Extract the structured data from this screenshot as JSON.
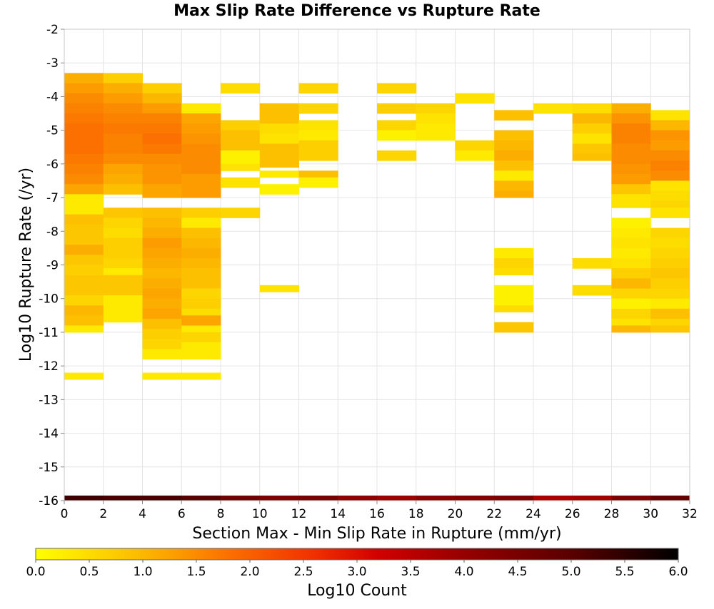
{
  "chart_data": {
    "type": "heatmap",
    "title": "Max Slip Rate Difference vs Rupture Rate",
    "xlabel": "Section Max - Min Slip Rate in Rupture (mm/yr)",
    "ylabel": "Log10 Rupture Rate (/yr)",
    "xlim": [
      0,
      32
    ],
    "ylim": [
      -16,
      -2
    ],
    "x_ticks": [
      0,
      2,
      4,
      6,
      8,
      10,
      12,
      14,
      16,
      18,
      20,
      22,
      24,
      26,
      28,
      30,
      32
    ],
    "y_ticks": [
      -16,
      -15,
      -14,
      -13,
      -12,
      -11,
      -10,
      -9,
      -8,
      -7,
      -6,
      -5,
      -4,
      -3,
      -2
    ],
    "grid": true,
    "x_bin_width": 2,
    "y_bin_height": 0.3,
    "colorbar": {
      "label": "Log10 Count",
      "min": 0.0,
      "max": 6.0,
      "ticks": [
        "0.0",
        "0.5",
        "1.0",
        "1.5",
        "2.0",
        "2.5",
        "3.0",
        "3.5",
        "4.0",
        "4.5",
        "5.0",
        "5.5",
        "6.0"
      ],
      "stops": [
        {
          "v": 0.0,
          "color": "#ffff00"
        },
        {
          "v": 0.9,
          "color": "#fcc000"
        },
        {
          "v": 1.8,
          "color": "#fb7000"
        },
        {
          "v": 2.6,
          "color": "#f03000"
        },
        {
          "v": 3.2,
          "color": "#d00000"
        },
        {
          "v": 4.0,
          "color": "#960000"
        },
        {
          "v": 5.0,
          "color": "#5a0000"
        },
        {
          "v": 6.0,
          "color": "#000000"
        }
      ]
    },
    "bottom_row": {
      "y0": -16,
      "y1": -15.85,
      "values": [
        5.3,
        5.2,
        5.2,
        5.0,
        4.6,
        4.4,
        4.5,
        4.1,
        3.9,
        4.2,
        4.3,
        4.4,
        3.7,
        3.8,
        4.4,
        4.8
      ]
    },
    "columns": [
      {
        "x0": 0,
        "ranges": [
          [
            -3.3,
            -3.6,
            1.1
          ],
          [
            -3.6,
            -3.9,
            1.3
          ],
          [
            -3.9,
            -4.2,
            1.5
          ],
          [
            -4.2,
            -4.5,
            1.6
          ],
          [
            -4.5,
            -4.8,
            1.7
          ],
          [
            -4.8,
            -5.1,
            1.8
          ],
          [
            -5.1,
            -5.4,
            1.8
          ],
          [
            -5.4,
            -5.7,
            1.8
          ],
          [
            -5.7,
            -6.0,
            1.7
          ],
          [
            -6.0,
            -6.3,
            1.6
          ],
          [
            -6.3,
            -6.6,
            1.5
          ],
          [
            -6.6,
            -6.9,
            1.2
          ],
          [
            -6.9,
            -7.2,
            0.3
          ],
          [
            -7.2,
            -7.5,
            0.3
          ],
          [
            -7.5,
            -7.8,
            0.9
          ],
          [
            -7.8,
            -8.1,
            0.8
          ],
          [
            -8.1,
            -8.4,
            0.8
          ],
          [
            -8.4,
            -8.7,
            1.1
          ],
          [
            -8.7,
            -9.0,
            0.8
          ],
          [
            -9.0,
            -9.3,
            0.7
          ],
          [
            -9.3,
            -9.6,
            0.8
          ],
          [
            -9.6,
            -9.9,
            0.8
          ],
          [
            -9.9,
            -10.2,
            0.6
          ],
          [
            -10.2,
            -10.5,
            1.0
          ],
          [
            -10.5,
            -10.8,
            0.9
          ],
          [
            -10.8,
            -11.0,
            0.3
          ],
          [
            -12.2,
            -12.4,
            0.3
          ]
        ]
      },
      {
        "x0": 2,
        "ranges": [
          [
            -3.3,
            -3.6,
            0.7
          ],
          [
            -3.6,
            -3.9,
            1.1
          ],
          [
            -3.9,
            -4.2,
            1.3
          ],
          [
            -4.2,
            -4.5,
            1.5
          ],
          [
            -4.5,
            -4.8,
            1.6
          ],
          [
            -4.8,
            -5.1,
            1.7
          ],
          [
            -5.1,
            -5.4,
            1.6
          ],
          [
            -5.4,
            -5.7,
            1.6
          ],
          [
            -5.7,
            -6.0,
            1.5
          ],
          [
            -6.0,
            -6.3,
            1.2
          ],
          [
            -6.3,
            -6.6,
            1.1
          ],
          [
            -6.6,
            -6.9,
            0.9
          ],
          [
            -7.3,
            -7.6,
            0.8
          ],
          [
            -7.6,
            -7.9,
            0.6
          ],
          [
            -7.9,
            -8.2,
            0.5
          ],
          [
            -8.2,
            -8.5,
            0.7
          ],
          [
            -8.5,
            -8.8,
            0.7
          ],
          [
            -8.8,
            -9.1,
            0.6
          ],
          [
            -9.1,
            -9.3,
            0.3
          ],
          [
            -9.3,
            -9.6,
            0.8
          ],
          [
            -9.6,
            -9.9,
            0.8
          ],
          [
            -9.9,
            -10.2,
            0.3
          ],
          [
            -10.2,
            -10.5,
            0.3
          ],
          [
            -10.5,
            -10.7,
            0.3
          ]
        ]
      },
      {
        "x0": 4,
        "ranges": [
          [
            -3.6,
            -3.9,
            0.7
          ],
          [
            -3.9,
            -4.2,
            1.0
          ],
          [
            -4.2,
            -4.5,
            1.3
          ],
          [
            -4.5,
            -4.8,
            1.6
          ],
          [
            -4.8,
            -5.1,
            1.7
          ],
          [
            -5.1,
            -5.4,
            1.8
          ],
          [
            -5.4,
            -5.7,
            1.7
          ],
          [
            -5.7,
            -6.0,
            1.5
          ],
          [
            -6.0,
            -6.3,
            1.4
          ],
          [
            -6.3,
            -6.6,
            1.4
          ],
          [
            -6.6,
            -7.0,
            1.2
          ],
          [
            -7.3,
            -7.6,
            0.9
          ],
          [
            -7.6,
            -7.9,
            1.0
          ],
          [
            -7.9,
            -8.2,
            1.1
          ],
          [
            -8.2,
            -8.5,
            1.3
          ],
          [
            -8.5,
            -8.8,
            1.2
          ],
          [
            -8.8,
            -9.1,
            1.1
          ],
          [
            -9.1,
            -9.4,
            1.0
          ],
          [
            -9.4,
            -9.7,
            1.1
          ],
          [
            -9.7,
            -10.0,
            1.2
          ],
          [
            -10.0,
            -10.3,
            1.1
          ],
          [
            -10.3,
            -10.6,
            1.2
          ],
          [
            -10.6,
            -10.9,
            0.9
          ],
          [
            -10.9,
            -11.2,
            0.7
          ],
          [
            -11.2,
            -11.5,
            0.6
          ],
          [
            -11.5,
            -11.8,
            0.3
          ],
          [
            -12.2,
            -12.4,
            0.3
          ]
        ]
      },
      {
        "x0": 6,
        "ranges": [
          [
            -4.2,
            -4.5,
            0.3
          ],
          [
            -4.5,
            -4.8,
            1.2
          ],
          [
            -4.8,
            -5.1,
            1.3
          ],
          [
            -5.1,
            -5.4,
            1.4
          ],
          [
            -5.4,
            -5.7,
            1.5
          ],
          [
            -5.7,
            -6.0,
            1.5
          ],
          [
            -6.0,
            -6.3,
            1.5
          ],
          [
            -6.3,
            -6.6,
            1.3
          ],
          [
            -6.6,
            -7.0,
            1.3
          ],
          [
            -7.3,
            -7.6,
            0.7
          ],
          [
            -7.6,
            -7.9,
            0.3
          ],
          [
            -7.9,
            -8.2,
            0.9
          ],
          [
            -8.2,
            -8.5,
            1.0
          ],
          [
            -8.5,
            -8.8,
            1.1
          ],
          [
            -8.8,
            -9.1,
            1.0
          ],
          [
            -9.1,
            -9.4,
            0.9
          ],
          [
            -9.4,
            -9.7,
            0.9
          ],
          [
            -9.7,
            -10.0,
            0.6
          ],
          [
            -10.0,
            -10.3,
            0.7
          ],
          [
            -10.3,
            -10.5,
            0.5
          ],
          [
            -10.5,
            -10.8,
            1.2
          ],
          [
            -10.8,
            -11.0,
            0.3
          ],
          [
            -11.0,
            -11.3,
            0.6
          ],
          [
            -11.3,
            -11.6,
            0.3
          ],
          [
            -11.6,
            -11.8,
            0.3
          ],
          [
            -12.2,
            -12.4,
            0.3
          ]
        ]
      },
      {
        "x0": 8,
        "ranges": [
          [
            -3.6,
            -3.9,
            0.5
          ],
          [
            -4.7,
            -5.0,
            0.7
          ],
          [
            -5.0,
            -5.3,
            0.9
          ],
          [
            -5.3,
            -5.6,
            0.9
          ],
          [
            -5.6,
            -6.0,
            0.2
          ],
          [
            -6.0,
            -6.2,
            0.4
          ],
          [
            -6.4,
            -6.7,
            0.4
          ],
          [
            -7.3,
            -7.6,
            0.6
          ]
        ]
      },
      {
        "x0": 10,
        "ranges": [
          [
            -4.2,
            -4.5,
            0.9
          ],
          [
            -4.5,
            -4.8,
            0.9
          ],
          [
            -4.8,
            -5.1,
            0.5
          ],
          [
            -5.1,
            -5.4,
            0.4
          ],
          [
            -5.4,
            -5.7,
            0.9
          ],
          [
            -5.7,
            -6.1,
            0.9
          ],
          [
            -6.2,
            -6.4,
            0.3
          ],
          [
            -6.6,
            -6.9,
            0.2
          ],
          [
            -9.6,
            -9.8,
            0.4
          ]
        ]
      },
      {
        "x0": 12,
        "ranges": [
          [
            -3.6,
            -3.9,
            0.6
          ],
          [
            -4.2,
            -4.5,
            0.6
          ],
          [
            -4.7,
            -5.0,
            0.4
          ],
          [
            -5.0,
            -5.3,
            0.3
          ],
          [
            -5.3,
            -5.6,
            0.7
          ],
          [
            -5.6,
            -5.9,
            0.7
          ],
          [
            -6.2,
            -6.4,
            0.9
          ],
          [
            -6.4,
            -6.7,
            0.2
          ]
        ]
      },
      {
        "x0": 16,
        "ranges": [
          [
            -3.6,
            -3.9,
            0.6
          ],
          [
            -4.2,
            -4.5,
            0.7
          ],
          [
            -4.7,
            -5.0,
            0.6
          ],
          [
            -5.0,
            -5.3,
            0.2
          ],
          [
            -5.6,
            -5.9,
            0.6
          ]
        ]
      },
      {
        "x0": 18,
        "ranges": [
          [
            -4.2,
            -4.5,
            0.6
          ],
          [
            -4.5,
            -4.8,
            0.4
          ],
          [
            -4.8,
            -5.0,
            0.3
          ],
          [
            -5.0,
            -5.3,
            0.3
          ]
        ]
      },
      {
        "x0": 20,
        "ranges": [
          [
            -3.9,
            -4.2,
            0.4
          ],
          [
            -5.3,
            -5.6,
            0.6
          ],
          [
            -5.6,
            -5.9,
            0.3
          ]
        ]
      },
      {
        "x0": 22,
        "ranges": [
          [
            -4.4,
            -4.7,
            0.9
          ],
          [
            -5.0,
            -5.3,
            0.9
          ],
          [
            -5.3,
            -5.6,
            1.0
          ],
          [
            -5.6,
            -5.9,
            1.1
          ],
          [
            -5.9,
            -6.2,
            0.9
          ],
          [
            -6.2,
            -6.5,
            0.3
          ],
          [
            -6.5,
            -6.8,
            1.0
          ],
          [
            -6.8,
            -7.0,
            1.1
          ],
          [
            -8.5,
            -8.8,
            0.3
          ],
          [
            -8.8,
            -9.1,
            0.6
          ],
          [
            -9.1,
            -9.3,
            0.5
          ],
          [
            -9.6,
            -9.9,
            0.2
          ],
          [
            -9.9,
            -10.2,
            0.2
          ],
          [
            -10.2,
            -10.4,
            0.5
          ],
          [
            -10.7,
            -11.0,
            0.8
          ]
        ]
      },
      {
        "x0": 24,
        "ranges": [
          [
            -4.2,
            -4.5,
            0.4
          ]
        ]
      },
      {
        "x0": 26,
        "ranges": [
          [
            -4.2,
            -4.5,
            0.5
          ],
          [
            -4.5,
            -4.8,
            1.0
          ],
          [
            -4.8,
            -5.1,
            0.7
          ],
          [
            -5.1,
            -5.4,
            0.4
          ],
          [
            -5.4,
            -5.7,
            0.8
          ],
          [
            -5.7,
            -5.9,
            0.9
          ],
          [
            -8.8,
            -9.1,
            0.5
          ],
          [
            -9.6,
            -9.9,
            0.5
          ]
        ]
      },
      {
        "x0": 28,
        "ranges": [
          [
            -4.2,
            -4.5,
            1.1
          ],
          [
            -4.5,
            -4.8,
            1.4
          ],
          [
            -4.8,
            -5.1,
            1.6
          ],
          [
            -5.1,
            -5.4,
            1.6
          ],
          [
            -5.4,
            -5.7,
            1.5
          ],
          [
            -5.7,
            -6.0,
            1.5
          ],
          [
            -6.0,
            -6.3,
            1.4
          ],
          [
            -6.3,
            -6.6,
            1.3
          ],
          [
            -6.6,
            -6.9,
            0.8
          ],
          [
            -6.9,
            -7.3,
            0.4
          ],
          [
            -7.6,
            -7.9,
            0.2
          ],
          [
            -7.9,
            -8.2,
            0.3
          ],
          [
            -8.2,
            -8.5,
            0.4
          ],
          [
            -8.5,
            -8.8,
            0.3
          ],
          [
            -8.8,
            -9.1,
            0.4
          ],
          [
            -9.1,
            -9.4,
            0.7
          ],
          [
            -9.4,
            -9.7,
            1.0
          ],
          [
            -9.7,
            -10.0,
            0.6
          ],
          [
            -10.0,
            -10.3,
            0.2
          ],
          [
            -10.3,
            -10.6,
            0.6
          ],
          [
            -10.6,
            -10.8,
            0.4
          ],
          [
            -10.8,
            -11.0,
            1.0
          ]
        ]
      },
      {
        "x0": 30,
        "ranges": [
          [
            -4.4,
            -4.7,
            0.4
          ],
          [
            -4.7,
            -5.0,
            1.0
          ],
          [
            -5.0,
            -5.3,
            1.4
          ],
          [
            -5.3,
            -5.6,
            1.3
          ],
          [
            -5.6,
            -5.9,
            1.5
          ],
          [
            -5.9,
            -6.2,
            1.6
          ],
          [
            -6.2,
            -6.5,
            1.5
          ],
          [
            -6.5,
            -6.8,
            0.4
          ],
          [
            -6.8,
            -7.1,
            0.5
          ],
          [
            -7.1,
            -7.3,
            0.6
          ],
          [
            -7.3,
            -7.6,
            0.4
          ],
          [
            -7.9,
            -8.2,
            0.6
          ],
          [
            -8.2,
            -8.5,
            0.5
          ],
          [
            -8.5,
            -8.8,
            0.6
          ],
          [
            -8.8,
            -9.1,
            0.7
          ],
          [
            -9.1,
            -9.4,
            0.8
          ],
          [
            -9.4,
            -9.7,
            0.7
          ],
          [
            -9.7,
            -10.0,
            0.6
          ],
          [
            -10.0,
            -10.3,
            0.3
          ],
          [
            -10.3,
            -10.6,
            0.9
          ],
          [
            -10.6,
            -10.8,
            0.6
          ],
          [
            -10.8,
            -11.0,
            0.8
          ]
        ]
      }
    ]
  }
}
